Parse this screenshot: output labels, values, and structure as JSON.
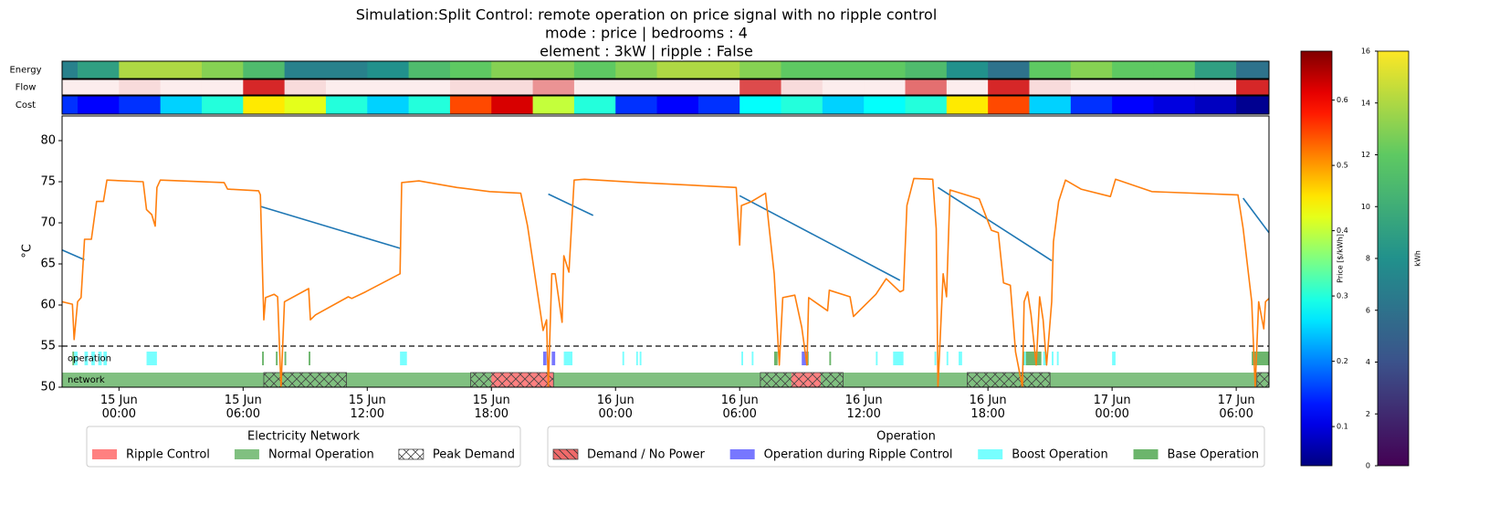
{
  "chart_data": {
    "type": "line",
    "title": "Simulation:Split Control: remote operation on price signal with no ripple control",
    "subtitle": [
      "mode : price | bedrooms : 4",
      "element : 3kW | ripple : False"
    ],
    "y_label": "°C",
    "xlim": [
      "14 Jun 21:15",
      "17 Jun 07:35"
    ],
    "xticks": [
      "15 Jun 00:00",
      "15 Jun 06:00",
      "15 Jun 12:00",
      "15 Jun 18:00",
      "16 Jun 00:00",
      "16 Jun 06:00",
      "16 Jun 12:00",
      "16 Jun 18:00",
      "17 Jun 00:00",
      "17 Jun 06:00"
    ],
    "ylim": [
      50,
      83
    ],
    "yticks": [
      50,
      55,
      60,
      65,
      70,
      75,
      80
    ],
    "hline": 55,
    "series": [
      {
        "color": "#1f77b4",
        "x": [
          "14 Jun 21:15",
          "14 Jun 22:20",
          null,
          "15 Jun 06:50",
          "15 Jun 13:35",
          null,
          "15 Jun 20:45",
          "15 Jun 22:55",
          null,
          "16 Jun 06:00",
          "16 Jun 13:45",
          null,
          "16 Jun 15:35",
          "16 Jun 21:05",
          null,
          "17 Jun 06:20",
          "17 Jun 07:35"
        ],
        "values": [
          66.7,
          65.5,
          null,
          72.0,
          66.9,
          null,
          73.5,
          70.9,
          null,
          73.3,
          63.0,
          null,
          74.3,
          65.4,
          null,
          73.0,
          68.8
        ]
      },
      {
        "color": "#ff7f0e",
        "x": [
          "14 Jun 21:15",
          "14 Jun 21:45",
          "14 Jun 21:50",
          "14 Jun 22:00",
          "14 Jun 22:10",
          "14 Jun 22:20",
          "14 Jun 22:40",
          "14 Jun 22:55",
          "14 Jun 23:15",
          "14 Jun 23:25",
          "15 Jun 01:10",
          "15 Jun 01:20",
          "15 Jun 01:35",
          "15 Jun 01:45",
          "15 Jun 01:50",
          "15 Jun 02:00",
          "15 Jun 05:05",
          "15 Jun 05:15",
          "15 Jun 06:45",
          "15 Jun 06:50",
          "15 Jun 07:00",
          "15 Jun 07:05",
          "15 Jun 07:30",
          "15 Jun 07:40",
          "15 Jun 07:50",
          "15 Jun 08:00",
          "15 Jun 09:10",
          "15 Jun 09:15",
          "15 Jun 09:30",
          "15 Jun 11:05",
          "15 Jun 11:15",
          "15 Jun 11:55",
          "15 Jun 13:35",
          "15 Jun 13:40",
          "15 Jun 14:30",
          "15 Jun 16:20",
          "15 Jun 17:55",
          "15 Jun 19:25",
          "15 Jun 19:45",
          "15 Jun 20:30",
          "15 Jun 20:40",
          "15 Jun 20:45",
          "15 Jun 20:55",
          "15 Jun 21:05",
          "15 Jun 21:25",
          "15 Jun 21:30",
          "15 Jun 21:45",
          "15 Jun 22:00",
          "15 Jun 22:30",
          "16 Jun 01:10",
          "16 Jun 05:50",
          "16 Jun 06:00",
          "16 Jun 06:05",
          "16 Jun 06:35",
          "16 Jun 07:15",
          "16 Jun 07:25",
          "16 Jun 07:40",
          "16 Jun 07:55",
          "16 Jun 08:05",
          "16 Jun 08:40",
          "16 Jun 09:00",
          "16 Jun 09:15",
          "16 Jun 09:20",
          "16 Jun 10:15",
          "16 Jun 10:20",
          "16 Jun 11:20",
          "16 Jun 11:30",
          "16 Jun 12:35",
          "16 Jun 13:05",
          "16 Jun 13:45",
          "16 Jun 13:55",
          "16 Jun 14:05",
          "16 Jun 14:25",
          "16 Jun 15:20",
          "16 Jun 15:30",
          "16 Jun 15:35",
          "16 Jun 15:50",
          "16 Jun 16:00",
          "16 Jun 16:10",
          "16 Jun 17:35",
          "16 Jun 18:10",
          "16 Jun 18:30",
          "16 Jun 18:45",
          "16 Jun 19:05",
          "16 Jun 19:20",
          "16 Jun 19:40",
          "16 Jun 19:45",
          "16 Jun 19:55",
          "16 Jun 20:05",
          "16 Jun 20:20",
          "16 Jun 20:30",
          "16 Jun 20:40",
          "16 Jun 20:50",
          "16 Jun 21:05",
          "16 Jun 21:10",
          "16 Jun 21:25",
          "16 Jun 21:45",
          "16 Jun 22:30",
          "16 Jun 23:55",
          "17 Jun 00:10",
          "17 Jun 01:55",
          "17 Jun 06:05",
          "17 Jun 06:20",
          "17 Jun 06:45",
          "17 Jun 06:55",
          "17 Jun 07:05",
          "17 Jun 07:20",
          "17 Jun 07:25",
          "17 Jun 07:35"
        ],
        "values": [
          60.4,
          60.1,
          55.8,
          60.4,
          60.9,
          68.0,
          68.0,
          72.6,
          72.6,
          75.2,
          75.0,
          71.6,
          71.0,
          69.6,
          74.3,
          75.2,
          74.9,
          74.1,
          73.9,
          73.4,
          58.2,
          60.9,
          61.3,
          61.0,
          50,
          60.4,
          62.0,
          58.2,
          58.8,
          61.0,
          60.8,
          61.6,
          63.8,
          74.9,
          75.1,
          74.3,
          73.8,
          73.6,
          69.6,
          56.9,
          58.2,
          50,
          63.8,
          63.8,
          57.9,
          66.0,
          64.0,
          75.2,
          75.3,
          74.9,
          74.3,
          67.3,
          72.1,
          72.6,
          73.6,
          69.6,
          63.8,
          52.7,
          60.9,
          61.2,
          57.3,
          52.7,
          60.9,
          59.3,
          61.8,
          61.0,
          58.6,
          61.3,
          63.2,
          61.6,
          61.8,
          72.1,
          75.4,
          75.3,
          69.3,
          50,
          63.8,
          61.0,
          74.0,
          72.9,
          69.1,
          68.8,
          62.7,
          62.4,
          54.3,
          50,
          60.4,
          61.6,
          58.8,
          52.7,
          61.0,
          58.2,
          52.7,
          60.4,
          67.7,
          72.6,
          75.2,
          74.1,
          73.2,
          75.3,
          73.8,
          73.4,
          69.3,
          60.4,
          50,
          60.4,
          57.1,
          60.4,
          60.8
        ]
      }
    ],
    "strips": {
      "bins": [
        "14 Jun 21:15",
        "14 Jun 22:00",
        "15 Jun 00:00",
        "15 Jun 02:00",
        "15 Jun 04:00",
        "15 Jun 06:00",
        "15 Jun 08:00",
        "15 Jun 10:00",
        "15 Jun 12:00",
        "15 Jun 14:00",
        "15 Jun 16:00",
        "15 Jun 18:00",
        "15 Jun 20:00",
        "15 Jun 22:00",
        "16 Jun 00:00",
        "16 Jun 02:00",
        "16 Jun 04:00",
        "16 Jun 06:00",
        "16 Jun 08:00",
        "16 Jun 10:00",
        "16 Jun 12:00",
        "16 Jun 14:00",
        "16 Jun 16:00",
        "16 Jun 18:00",
        "16 Jun 20:00",
        "16 Jun 22:00",
        "17 Jun 00:00",
        "17 Jun 02:00",
        "17 Jun 04:00",
        "17 Jun 06:00",
        "17 Jun 07:35"
      ],
      "rows": [
        {
          "label": "Energy",
          "colormap": "viridis",
          "values": [
            7,
            9,
            14,
            14,
            13,
            11,
            7,
            7,
            8,
            11,
            12,
            13,
            13,
            12,
            13,
            14,
            14,
            13,
            12,
            12,
            12,
            11,
            8,
            6,
            12,
            13,
            12,
            12,
            9,
            6
          ],
          "colorbar": {
            "label": "kWh",
            "lim": [
              0,
              16
            ],
            "ticks": [
              0,
              2,
              4,
              6,
              8,
              10,
              12,
              14,
              16
            ]
          }
        },
        {
          "label": "Flow",
          "colormap": "reds",
          "values": [
            0.05,
            0.05,
            0.1,
            0.05,
            0.05,
            0.6,
            0.1,
            0.05,
            0.05,
            0.05,
            0.1,
            0.1,
            0.3,
            0.05,
            0.05,
            0.05,
            0.05,
            0.5,
            0.1,
            0.05,
            0.05,
            0.4,
            0.05,
            0.6,
            0.1,
            0.05,
            0.05,
            0.05,
            0.05,
            0.6
          ]
        },
        {
          "label": "Cost",
          "colormap": "jet",
          "values": [
            0.15,
            0.12,
            0.15,
            0.25,
            0.3,
            0.45,
            0.42,
            0.3,
            0.25,
            0.3,
            0.55,
            0.62,
            0.4,
            0.3,
            0.15,
            0.12,
            0.15,
            0.28,
            0.3,
            0.25,
            0.28,
            0.3,
            0.45,
            0.55,
            0.25,
            0.15,
            0.12,
            0.1,
            0.08,
            0.05
          ],
          "colorbar": {
            "label": "Price [$/kWh]",
            "lim": [
              0.04,
              0.675
            ],
            "ticks": [
              0.1,
              0.2,
              0.3,
              0.4,
              0.5,
              0.6
            ]
          }
        }
      ]
    },
    "bands": [
      {
        "label": "network",
        "legend_title": "Electricity Network",
        "items": [
          {
            "name": "Ripple Control",
            "color": "#ff8080",
            "hatch": null,
            "intervals": [
              [
                "15 Jun 18:00",
                "15 Jun 21:00"
              ],
              [
                "16 Jun 08:30",
                "16 Jun 09:55"
              ]
            ]
          },
          {
            "name": "Normal Operation",
            "color": "#80c080",
            "hatch": null,
            "intervals": [
              [
                "14 Jun 21:15",
                "17 Jun 07:35"
              ]
            ]
          },
          {
            "name": "Peak Demand",
            "color": "none",
            "hatch": "x",
            "intervals": [
              [
                "15 Jun 07:00",
                "15 Jun 11:00"
              ],
              [
                "15 Jun 17:00",
                "15 Jun 21:00"
              ],
              [
                "16 Jun 07:00",
                "16 Jun 11:00"
              ],
              [
                "16 Jun 17:00",
                "16 Jun 21:00"
              ],
              [
                "17 Jun 07:00",
                "17 Jun 07:35"
              ]
            ]
          }
        ]
      },
      {
        "label": "operation",
        "legend_title": "Operation",
        "items": [
          {
            "name": "Demand / No Power",
            "color": "#f06a6a",
            "hatch": "\\",
            "intervals": []
          },
          {
            "name": "Operation during Ripple Control",
            "color": "#7777ff",
            "hatch": null,
            "intervals": [
              [
                "15 Jun 20:30",
                "15 Jun 20:40"
              ],
              [
                "15 Jun 20:55",
                "15 Jun 21:05"
              ],
              [
                "16 Jun 09:00",
                "16 Jun 09:15"
              ]
            ]
          },
          {
            "name": "Boost Operation",
            "color": "#77ffff",
            "hatch": null,
            "intervals": [
              [
                "14 Jun 21:50",
                "14 Jun 22:00"
              ],
              [
                "14 Jun 22:20",
                "14 Jun 22:30"
              ],
              [
                "14 Jun 22:40",
                "14 Jun 22:50"
              ],
              [
                "14 Jun 23:00",
                "14 Jun 23:10"
              ],
              [
                "14 Jun 23:15",
                "14 Jun 23:25"
              ],
              [
                "15 Jun 01:20",
                "15 Jun 01:50"
              ],
              [
                "15 Jun 13:35",
                "15 Jun 13:55"
              ],
              [
                "15 Jun 21:30",
                "15 Jun 21:55"
              ],
              [
                "16 Jun 00:20",
                "16 Jun 00:25"
              ],
              [
                "16 Jun 01:00",
                "16 Jun 01:05"
              ],
              [
                "16 Jun 01:10",
                "16 Jun 01:15"
              ],
              [
                "16 Jun 06:05",
                "16 Jun 06:10"
              ],
              [
                "16 Jun 06:35",
                "16 Jun 06:40"
              ],
              [
                "16 Jun 12:35",
                "16 Jun 12:40"
              ],
              [
                "16 Jun 13:25",
                "16 Jun 13:55"
              ],
              [
                "16 Jun 15:25",
                "16 Jun 15:30"
              ],
              [
                "16 Jun 16:00",
                "16 Jun 16:05"
              ],
              [
                "16 Jun 16:35",
                "16 Jun 16:45"
              ],
              [
                "16 Jun 19:45",
                "16 Jun 19:50"
              ],
              [
                "16 Jun 20:40",
                "16 Jun 20:50"
              ],
              [
                "16 Jun 21:05",
                "16 Jun 21:10"
              ],
              [
                "16 Jun 21:20",
                "16 Jun 21:25"
              ],
              [
                "17 Jun 00:00",
                "17 Jun 00:10"
              ]
            ]
          },
          {
            "name": "Base Operation",
            "color": "#6cb56c",
            "hatch": null,
            "intervals": [
              [
                "14 Jun 21:45",
                "14 Jun 21:50"
              ],
              [
                "15 Jun 06:55",
                "15 Jun 07:00"
              ],
              [
                "15 Jun 07:35",
                "15 Jun 07:40"
              ],
              [
                "15 Jun 08:00",
                "15 Jun 08:05"
              ],
              [
                "15 Jun 09:10",
                "15 Jun 09:15"
              ],
              [
                "16 Jun 07:40",
                "16 Jun 07:50"
              ],
              [
                "16 Jun 09:15",
                "16 Jun 09:20"
              ],
              [
                "16 Jun 10:20",
                "16 Jun 10:25"
              ],
              [
                "16 Jun 19:40",
                "16 Jun 20:35"
              ],
              [
                "17 Jun 06:45",
                "17 Jun 07:35"
              ]
            ]
          }
        ]
      }
    ]
  }
}
